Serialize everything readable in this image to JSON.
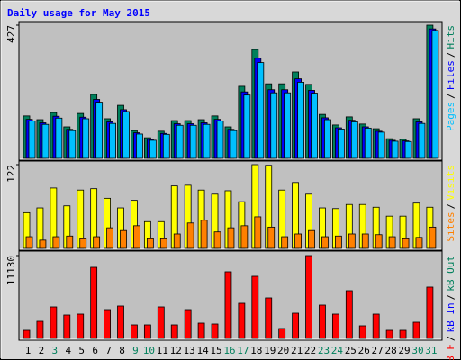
{
  "chart_data": [
    {
      "type": "bar",
      "title": "Daily usage for May 2015",
      "series": [
        {
          "name": "Pages",
          "color": "#00c0ff",
          "values": [
            120,
            109,
            129,
            89,
            127,
            180,
            112,
            150,
            78,
            58,
            77,
            106,
            106,
            109,
            120,
            89,
            203,
            307,
            210,
            210,
            244,
            209,
            124,
            94,
            117,
            97,
            84,
            55,
            54,
            112,
            410
          ]
        },
        {
          "name": "Files",
          "color": "#0000ff",
          "values": [
            125,
            114,
            135,
            93,
            132,
            189,
            117,
            156,
            82,
            61,
            80,
            111,
            111,
            114,
            125,
            93,
            213,
            321,
            220,
            220,
            255,
            218,
            130,
            98,
            122,
            101,
            87,
            58,
            56,
            117,
            415
          ]
        },
        {
          "name": "Hits",
          "color": "#00805c",
          "values": [
            136,
            124,
            147,
            101,
            144,
            205,
            127,
            170,
            89,
            66,
            87,
            121,
            121,
            124,
            136,
            101,
            231,
            349,
            239,
            239,
            277,
            237,
            141,
            107,
            133,
            110,
            95,
            63,
            61,
            127,
            427
          ]
        }
      ],
      "ylim": [
        0,
        427
      ],
      "yticks": [
        427
      ],
      "legend_separator": "/"
    },
    {
      "type": "bar",
      "series": [
        {
          "name": "Sites",
          "color": "#ff8000",
          "values": [
            17,
            12,
            17,
            18,
            14,
            17,
            30,
            26,
            33,
            14,
            14,
            21,
            37,
            41,
            24,
            30,
            33,
            46,
            31,
            17,
            21,
            26,
            17,
            18,
            21,
            21,
            20,
            17,
            14,
            16,
            31
          ]
        },
        {
          "name": "Visits",
          "color": "#ffff00",
          "values": [
            52,
            59,
            88,
            62,
            85,
            87,
            73,
            59,
            70,
            39,
            39,
            91,
            92,
            85,
            79,
            84,
            68,
            122,
            121,
            85,
            96,
            79,
            59,
            58,
            64,
            64,
            60,
            47,
            47,
            66,
            60
          ]
        }
      ],
      "ylim": [
        0,
        122
      ],
      "yticks": [
        122
      ],
      "legend_separator": "/"
    },
    {
      "type": "bar",
      "categories": [
        "1",
        "2",
        "3",
        "4",
        "5",
        "6",
        "7",
        "8",
        "9",
        "10",
        "11",
        "12",
        "13",
        "14",
        "15",
        "16",
        "17",
        "18",
        "19",
        "20",
        "21",
        "22",
        "23",
        "24",
        "25",
        "26",
        "27",
        "28",
        "29",
        "30",
        "31"
      ],
      "category_colors": [
        "#000000",
        "#000000",
        "#00805c",
        "#000000",
        "#000000",
        "#000000",
        "#000000",
        "#000000",
        "#00805c",
        "#00805c",
        "#000000",
        "#000000",
        "#000000",
        "#000000",
        "#000000",
        "#00805c",
        "#00805c",
        "#000000",
        "#000000",
        "#000000",
        "#000000",
        "#000000",
        "#00805c",
        "#00805c",
        "#000000",
        "#000000",
        "#000000",
        "#000000",
        "#000000",
        "#00805c",
        "#00805c"
      ],
      "series": [
        {
          "name": "kB F",
          "color": "#ff0000",
          "values": [
            1089,
            2299,
            4235,
            3146,
            3267,
            9559,
            3872,
            4356,
            1815,
            1815,
            4235,
            1815,
            3872,
            2057,
            1936,
            8954,
            4719,
            8349,
            5445,
            1331,
            3388,
            11130,
            4477,
            3267,
            6413,
            1694,
            3267,
            1089,
            1089,
            2178,
            6897
          ]
        }
      ],
      "legend_only": [
        {
          "name": "kB In",
          "color": "#0000ff"
        },
        {
          "name": "kB Out",
          "color": "#00805c"
        }
      ],
      "ylim": [
        0,
        11130
      ],
      "yticks": [
        11130
      ],
      "legend_separator": "/"
    }
  ]
}
